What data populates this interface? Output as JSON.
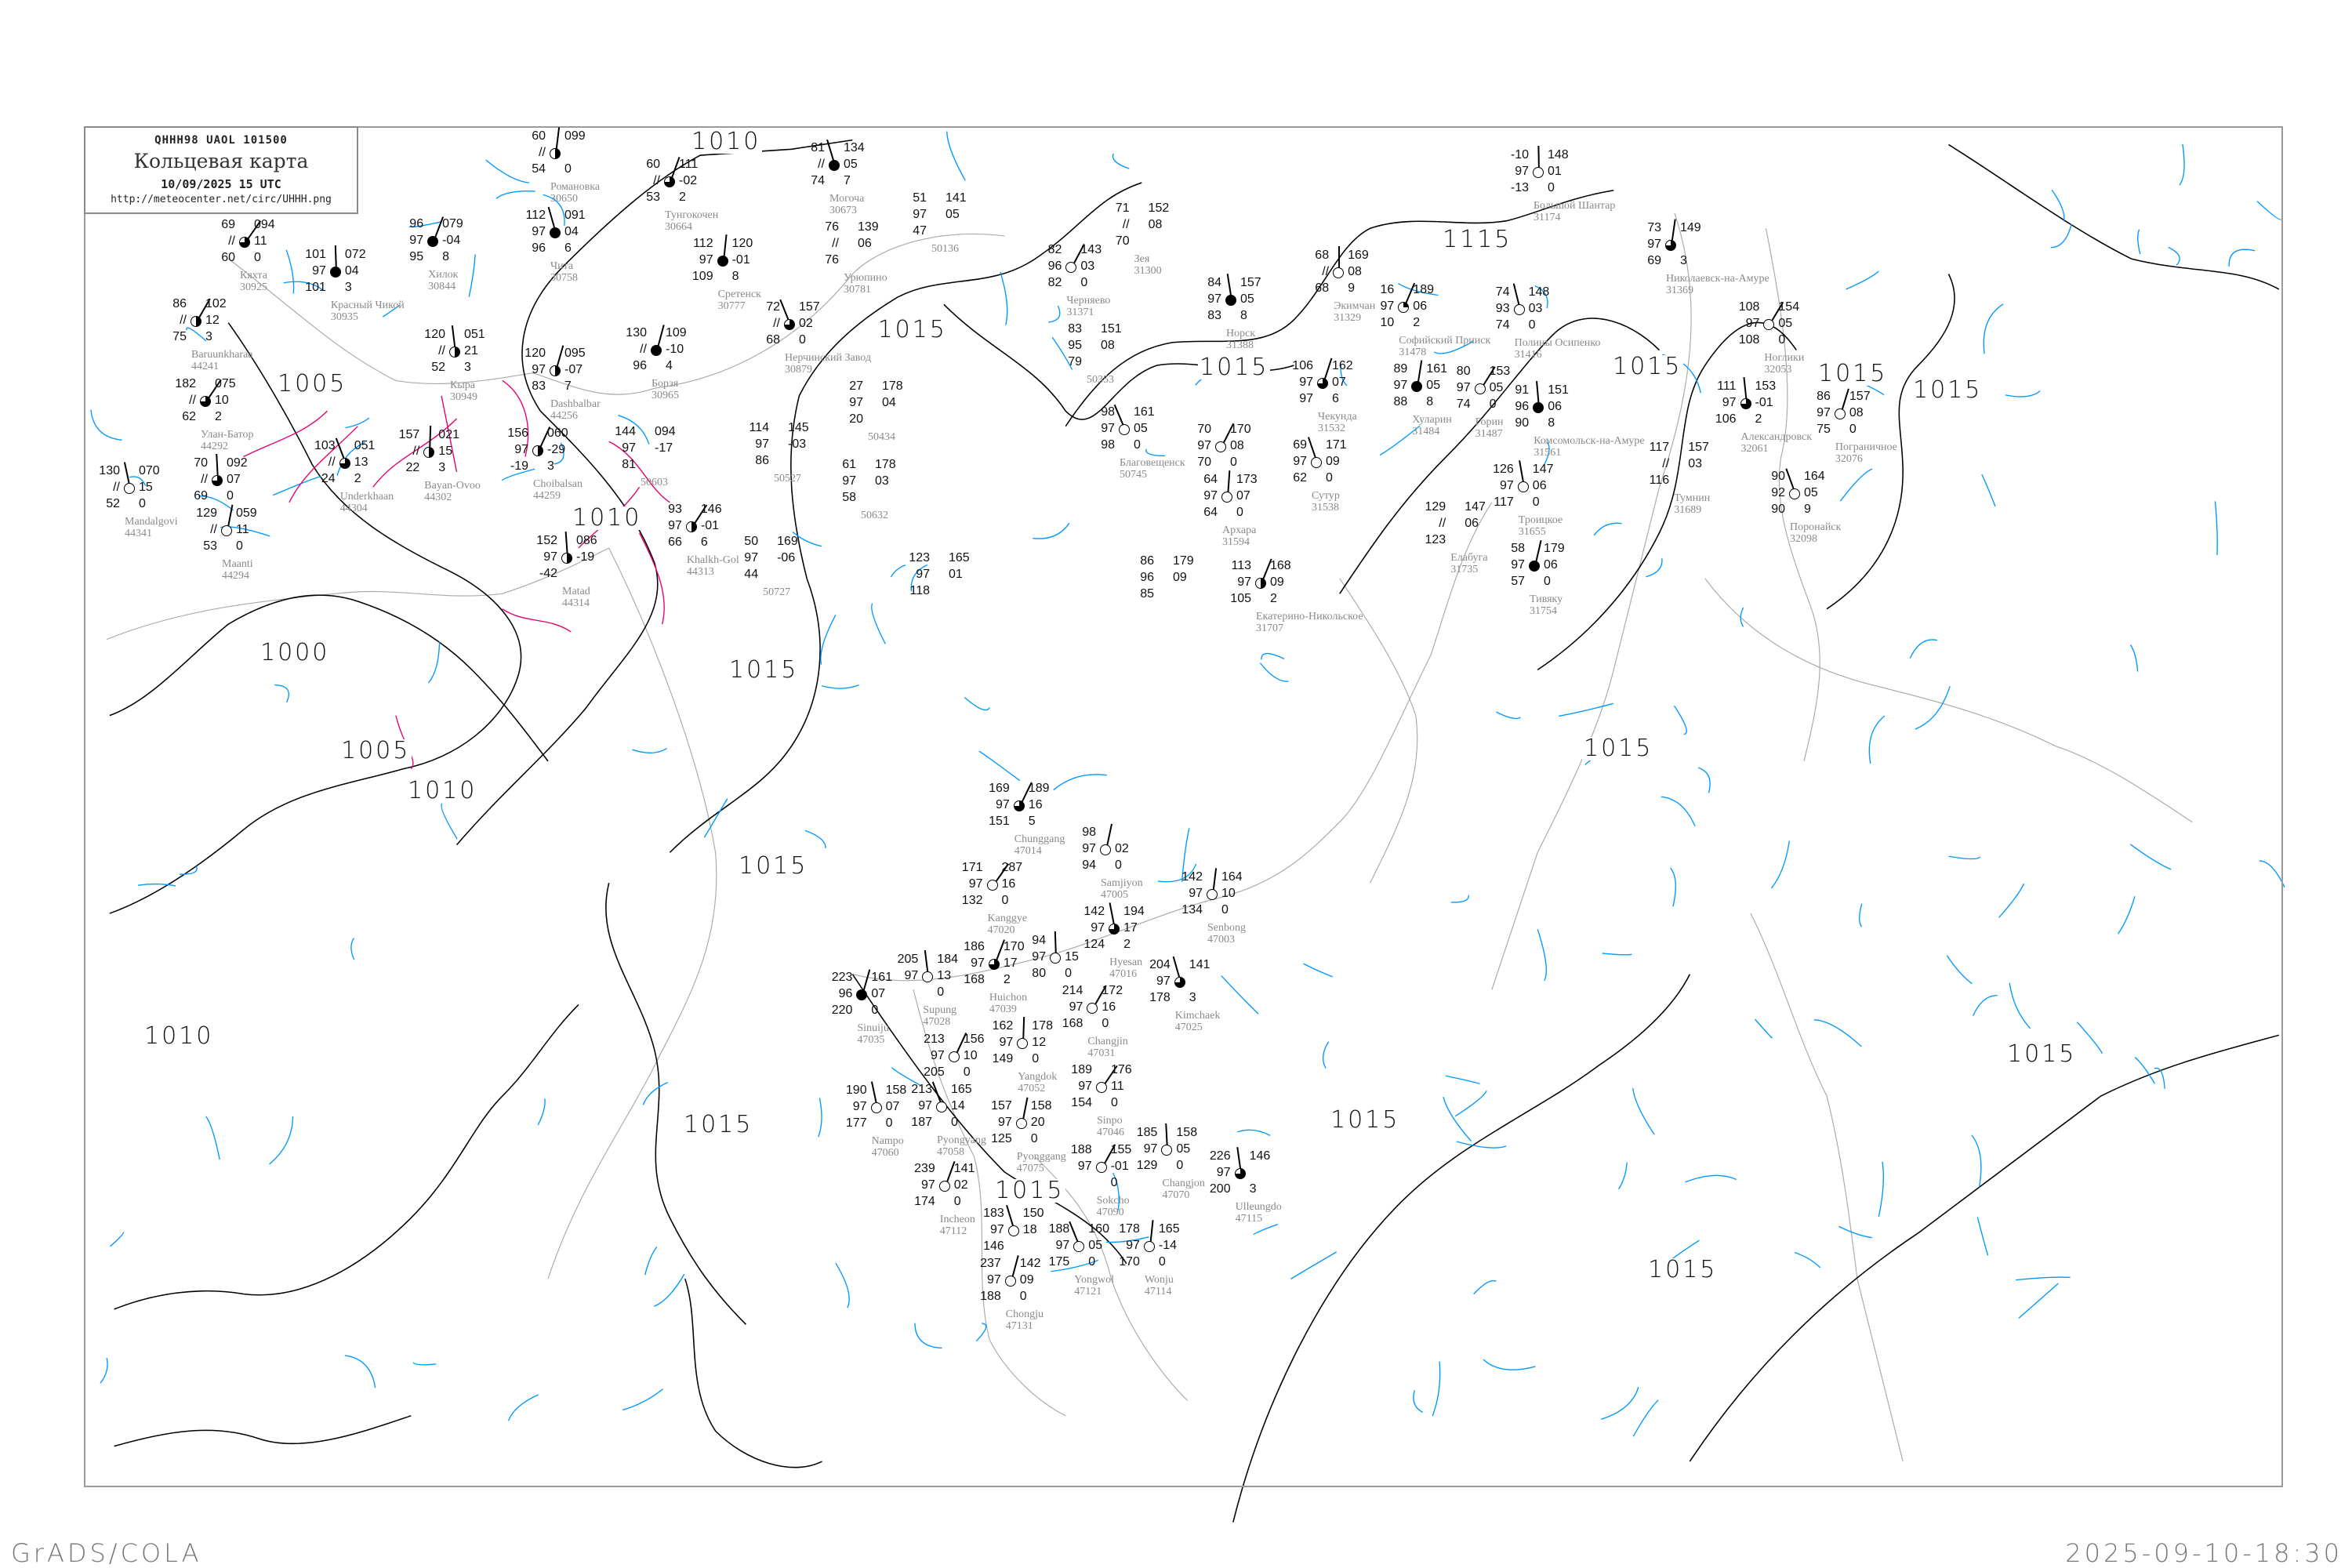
{
  "header": {
    "code": "QHHH98  UAOL  101500",
    "title": "Кольцевая карта",
    "datetime": "10/09/2025 15 UTC",
    "url": "http://meteocenter.net/circ/UHHH.png"
  },
  "footer": {
    "left": "GrADS/COLA",
    "right": "2025-09-10-18:30"
  },
  "colors": {
    "isobar": "#000000",
    "isotherm": "#0099ff",
    "isotherm_negative": "#e0006e",
    "coastline": "#aaaaaa",
    "station_name": "#8a8a8a"
  },
  "isobar_labels": [
    "1010",
    "1005",
    "1010",
    "1000",
    "1015",
    "1005",
    "1010",
    "1015",
    "1010",
    "1015",
    "1015",
    "1015",
    "1015",
    "1015",
    "1115",
    "1015",
    "1015",
    "1015",
    "1015",
    "1015",
    "1015"
  ],
  "stations": [
    {
      "name": "Кяхта",
      "id": "30925",
      "t": "69",
      "vv": "//",
      "td": "60",
      "p": "094",
      "dp": "11",
      "ex": "0",
      "cover": 0.75
    },
    {
      "name": "Красный Чикой",
      "id": "30935",
      "t": "101",
      "vv": "97",
      "td": "101",
      "p": "072",
      "dp": "04",
      "ex": "3",
      "cover": 1
    },
    {
      "name": "Хилок",
      "id": "30844",
      "t": "96",
      "vv": "97",
      "td": "95",
      "p": "079",
      "dp": "-04",
      "ex": "8",
      "cover": 1
    },
    {
      "name": "Чита",
      "id": "30758",
      "t": "112",
      "vv": "97",
      "td": "96",
      "p": "091",
      "dp": "04",
      "ex": "6",
      "cover": 1
    },
    {
      "name": "Романовка",
      "id": "30650",
      "t": "60",
      "vv": "//",
      "td": "54",
      "p": "099",
      "dp": "",
      "ex": "0",
      "cover": 0.5
    },
    {
      "name": "Baruunkharaa",
      "id": "44241",
      "t": "86",
      "vv": "//",
      "td": "75",
      "p": "102",
      "dp": "12",
      "ex": "3",
      "cover": 0.5
    },
    {
      "name": "Кыра",
      "id": "30949",
      "t": "120",
      "vv": "//",
      "td": "52",
      "p": "051",
      "dp": "21",
      "ex": "3",
      "cover": 0.5
    },
    {
      "name": "Dashbalbar",
      "id": "44256",
      "t": "120",
      "vv": "97",
      "td": "83",
      "p": "095",
      "dp": "-07",
      "ex": "7",
      "cover": 0.5
    },
    {
      "name": "Underkhaan",
      "id": "44304",
      "t": "103",
      "vv": "//",
      "td": "24",
      "p": "051",
      "dp": "13",
      "ex": "2",
      "cover": 0.75
    },
    {
      "name": "Bayan-Ovoo",
      "id": "44302",
      "t": "157",
      "vv": "//",
      "td": "22",
      "p": "021",
      "dp": "15",
      "ex": "3",
      "cover": 0.5
    },
    {
      "name": "Choibalsan",
      "id": "44259",
      "t": "156",
      "vv": "97",
      "td": "-19",
      "p": "060",
      "dp": "-29",
      "ex": "3",
      "cover": 0.5
    },
    {
      "name": "Mandalgovi",
      "id": "44341",
      "t": "130",
      "vv": "//",
      "td": "52",
      "p": "070",
      "dp": "15",
      "ex": "0",
      "cover": 0
    },
    {
      "name": "Maanti",
      "id": "44294",
      "t": "129",
      "vv": "//",
      "td": "53",
      "p": "059",
      "dp": "11",
      "ex": "0",
      "cover": 0
    },
    {
      "name": "Улан-Батор",
      "id": "44292",
      "t": "182",
      "vv": "//",
      "td": "62",
      "p": "075",
      "dp": "10",
      "ex": "2",
      "cover": 0.75
    },
    {
      "name": "",
      "id": "",
      "t": "70",
      "vv": "//",
      "td": "69",
      "p": "092",
      "dp": "07",
      "ex": "0",
      "cover": 0.75
    },
    {
      "name": "Тунгокочен",
      "id": "30664",
      "t": "60",
      "vv": "//",
      "td": "53",
      "p": "111",
      "dp": "-02",
      "ex": "2",
      "cover": 0.75
    },
    {
      "name": "Могоча",
      "id": "30673",
      "t": "81",
      "vv": "//",
      "td": "74",
      "p": "134",
      "dp": "05",
      "ex": "7",
      "cover": 1
    },
    {
      "name": "Сретенск",
      "id": "30777",
      "t": "112",
      "vv": "97",
      "td": "109",
      "p": "120",
      "dp": "-01",
      "ex": "8",
      "cover": 1
    },
    {
      "name": "Урюпино",
      "id": "30781",
      "t": "76",
      "vv": "//",
      "td": "76",
      "p": "139",
      "dp": "06",
      "ex": "",
      "cover": null
    },
    {
      "name": "",
      "id": "50136",
      "t": "51",
      "vv": "97",
      "td": "47",
      "p": "141",
      "dp": "05",
      "ex": "",
      "cover": null
    },
    {
      "name": "Борзя",
      "id": "30965",
      "t": "130",
      "vv": "//",
      "td": "96",
      "p": "109",
      "dp": "-10",
      "ex": "4",
      "cover": 1
    },
    {
      "name": "Нерчинский Завод",
      "id": "30879",
      "t": "72",
      "vv": "//",
      "td": "68",
      "p": "157",
      "dp": "02",
      "ex": "0",
      "cover": 0.75
    },
    {
      "name": "",
      "id": "50434",
      "t": "27",
      "vv": "97",
      "td": "20",
      "p": "178",
      "dp": "04",
      "ex": "",
      "cover": null
    },
    {
      "name": "",
      "id": "50603",
      "t": "144",
      "vv": "97",
      "td": "81",
      "p": "094",
      "dp": "-17",
      "ex": "",
      "cover": null
    },
    {
      "name": "",
      "id": "50527",
      "t": "114",
      "vv": "97",
      "td": "86",
      "p": "145",
      "dp": "-03",
      "ex": "",
      "cover": null
    },
    {
      "name": "",
      "id": "50632",
      "t": "61",
      "vv": "97",
      "td": "58",
      "p": "178",
      "dp": "03",
      "ex": "",
      "cover": null
    },
    {
      "name": "Khalkh-Gol",
      "id": "44313",
      "t": "93",
      "vv": "97",
      "td": "66",
      "p": "146",
      "dp": "-01",
      "ex": "6",
      "cover": 0.5
    },
    {
      "name": "Matad",
      "id": "44314",
      "t": "152",
      "vv": "97",
      "td": "-42",
      "p": "086",
      "dp": "-19",
      "ex": "",
      "cover": 0.5
    },
    {
      "name": "",
      "id": "50727",
      "t": "50",
      "vv": "97",
      "td": "44",
      "p": "169",
      "dp": "-06",
      "ex": "",
      "cover": null
    },
    {
      "name": "",
      "id": "",
      "t": "123",
      "vv": "97",
      "td": "118",
      "p": "165",
      "dp": "01",
      "ex": "",
      "cover": null
    },
    {
      "name": "Зея",
      "id": "31300",
      "t": "71",
      "vv": "//",
      "td": "70",
      "p": "152",
      "dp": "08",
      "ex": "",
      "cover": null
    },
    {
      "name": "Черняево",
      "id": "31371",
      "t": "82",
      "vv": "96",
      "td": "82",
      "p": "143",
      "dp": "03",
      "ex": "0",
      "cover": 0
    },
    {
      "name": "Норск",
      "id": "31388",
      "t": "84",
      "vv": "97",
      "td": "83",
      "p": "157",
      "dp": "05",
      "ex": "8",
      "cover": 1
    },
    {
      "name": "",
      "id": "50353",
      "t": "83",
      "vv": "95",
      "td": "79",
      "p": "151",
      "dp": "08",
      "ex": "",
      "cover": null
    },
    {
      "name": "Благовещенск",
      "id": "50745",
      "t": "98",
      "vv": "97",
      "td": "98",
      "p": "161",
      "dp": "05",
      "ex": "0",
      "cover": 0
    },
    {
      "name": "Экимчан",
      "id": "31329",
      "t": "68",
      "vv": "//",
      "td": "68",
      "p": "169",
      "dp": "08",
      "ex": "9",
      "cover": 0
    },
    {
      "name": "Софийский Прииск",
      "id": "31478",
      "t": "16",
      "vv": "97",
      "td": "10",
      "p": "189",
      "dp": "06",
      "ex": "2",
      "cover": 0.25
    },
    {
      "name": "Полины Осипенко",
      "id": "31416",
      "t": "74",
      "vv": "93",
      "td": "74",
      "p": "148",
      "dp": "03",
      "ex": "0",
      "cover": 0
    },
    {
      "name": "Хуларин",
      "id": "31484",
      "t": "89",
      "vv": "97",
      "td": "88",
      "p": "161",
      "dp": "05",
      "ex": "8",
      "cover": 1
    },
    {
      "name": "Горин",
      "id": "31487",
      "t": "80",
      "vv": "97",
      "td": "74",
      "p": "153",
      "dp": "05",
      "ex": "0",
      "cover": 0
    },
    {
      "name": "Комсомольск-на-Амуре",
      "id": "31561",
      "t": "91",
      "vv": "96",
      "td": "90",
      "p": "151",
      "dp": "06",
      "ex": "8",
      "cover": 1
    },
    {
      "name": "Чекунда",
      "id": "31532",
      "t": "106",
      "vv": "97",
      "td": "97",
      "p": "162",
      "dp": "07",
      "ex": "6",
      "cover": 0.75
    },
    {
      "name": "Сутур",
      "id": "31538",
      "t": "69",
      "vv": "97",
      "td": "62",
      "p": "171",
      "dp": "09",
      "ex": "0",
      "cover": 0
    },
    {
      "name": "Архара",
      "id": "31594",
      "t": "64",
      "vv": "97",
      "td": "64",
      "p": "173",
      "dp": "07",
      "ex": "0",
      "cover": 0
    },
    {
      "name": "",
      "id": "",
      "t": "70",
      "vv": "97",
      "td": "70",
      "p": "170",
      "dp": "08",
      "ex": "0",
      "cover": 0
    },
    {
      "name": "Троицкое",
      "id": "31655",
      "t": "126",
      "vv": "97",
      "td": "117",
      "p": "147",
      "dp": "06",
      "ex": "0",
      "cover": 0
    },
    {
      "name": "Тивяку",
      "id": "31754",
      "t": "58",
      "vv": "97",
      "td": "57",
      "p": "179",
      "dp": "06",
      "ex": "0",
      "cover": 1
    },
    {
      "name": "Елабуга",
      "id": "31735",
      "t": "129",
      "vv": "//",
      "td": "123",
      "p": "147",
      "dp": "06",
      "ex": "",
      "cover": null
    },
    {
      "name": "Большой Шантар",
      "id": "31174",
      "t": "-10",
      "vv": "97",
      "td": "-13",
      "p": "148",
      "dp": "01",
      "ex": "0",
      "cover": 0
    },
    {
      "name": "Екатерино-Никольское",
      "id": "31707",
      "t": "113",
      "vv": "97",
      "td": "105",
      "p": "168",
      "dp": "09",
      "ex": "2",
      "cover": 0.5
    },
    {
      "name": "",
      "id": "",
      "t": "86",
      "vv": "96",
      "td": "85",
      "p": "179",
      "dp": "09",
      "ex": "",
      "cover": null
    },
    {
      "name": "Николаевск-на-Амуре",
      "id": "31369",
      "t": "73",
      "vv": "97",
      "td": "69",
      "p": "149",
      "dp": "",
      "ex": "3",
      "cover": 0.75
    },
    {
      "name": "Ноглики",
      "id": "32053",
      "t": "108",
      "vv": "97",
      "td": "108",
      "p": "154",
      "dp": "05",
      "ex": "0",
      "cover": 0
    },
    {
      "name": "Александровск",
      "id": "32061",
      "t": "111",
      "vv": "97",
      "td": "106",
      "p": "153",
      "dp": "-01",
      "ex": "2",
      "cover": 0.75
    },
    {
      "name": "Пограничное",
      "id": "32076",
      "t": "86",
      "vv": "97",
      "td": "75",
      "p": "157",
      "dp": "08",
      "ex": "0",
      "cover": 0
    },
    {
      "name": "Поронайск",
      "id": "32098",
      "t": "90",
      "vv": "92",
      "td": "90",
      "p": "164",
      "dp": "05",
      "ex": "9",
      "cover": 0
    },
    {
      "name": "Тумнин",
      "id": "31689",
      "t": "117",
      "vv": "//",
      "td": "116",
      "p": "157",
      "dp": "03",
      "ex": "",
      "cover": null
    },
    {
      "name": "Chunggang",
      "id": "47014",
      "t": "169",
      "vv": "97",
      "td": "151",
      "p": "189",
      "dp": "16",
      "ex": "5",
      "cover": 0.75
    },
    {
      "name": "Hyesan",
      "id": "47016",
      "t": "142",
      "vv": "97",
      "td": "124",
      "p": "194",
      "dp": "17",
      "ex": "2",
      "cover": 0.75
    },
    {
      "name": "Samjiyon",
      "id": "47005",
      "t": "98",
      "vv": "97",
      "td": "94",
      "p": "",
      "dp": "02",
      "ex": "0",
      "cover": 0
    },
    {
      "name": "Kanggye",
      "id": "47020",
      "t": "171",
      "vv": "97",
      "td": "132",
      "p": "287",
      "dp": "16",
      "ex": "0",
      "cover": 0
    },
    {
      "name": "",
      "id": "",
      "t": "94",
      "vv": "97",
      "td": "80",
      "p": "",
      "dp": "15",
      "ex": "0",
      "cover": 0
    },
    {
      "name": "Huichon",
      "id": "47039",
      "t": "186",
      "vv": "97",
      "td": "168",
      "p": "170",
      "dp": "17",
      "ex": "2",
      "cover": 0.75
    },
    {
      "name": "Kimchaek",
      "id": "47025",
      "t": "204",
      "vv": "97",
      "td": "178",
      "p": "141",
      "dp": "",
      "ex": "3",
      "cover": 0.75
    },
    {
      "name": "Senbong",
      "id": "47003",
      "t": "142",
      "vv": "97",
      "td": "134",
      "p": "164",
      "dp": "10",
      "ex": "0",
      "cover": 0
    },
    {
      "name": "Changjin",
      "id": "47031",
      "t": "214",
      "vv": "97",
      "td": "168",
      "p": "172",
      "dp": "16",
      "ex": "0",
      "cover": 0
    },
    {
      "name": "Supung",
      "id": "47028",
      "t": "205",
      "vv": "97",
      "td": "",
      "p": "184",
      "dp": "13",
      "ex": "0",
      "cover": 0
    },
    {
      "name": "Sinuiju",
      "id": "47035",
      "t": "223",
      "vv": "96",
      "td": "220",
      "p": "161",
      "dp": "07",
      "ex": "0",
      "cover": 1
    },
    {
      "name": "Pyongyang",
      "id": "47058",
      "t": "213",
      "vv": "97",
      "td": "187",
      "p": "165",
      "dp": "14",
      "ex": "0",
      "cover": 0
    },
    {
      "name": "Yangdok",
      "id": "47052",
      "t": "162",
      "vv": "97",
      "td": "149",
      "p": "178",
      "dp": "12",
      "ex": "0",
      "cover": 0
    },
    {
      "name": "",
      "id": "",
      "t": "213",
      "vv": "97",
      "td": "205",
      "p": "156",
      "dp": "10",
      "ex": "0",
      "cover": 0
    },
    {
      "name": "Nampo",
      "id": "47060",
      "t": "190",
      "vv": "97",
      "td": "177",
      "p": "158",
      "dp": "07",
      "ex": "0",
      "cover": 0
    },
    {
      "name": "Pyonggang",
      "id": "47075",
      "t": "157",
      "vv": "97",
      "td": "125",
      "p": "158",
      "dp": "20",
      "ex": "0",
      "cover": 0
    },
    {
      "name": "Sinpo",
      "id": "47046",
      "t": "189",
      "vv": "97",
      "td": "154",
      "p": "176",
      "dp": "11",
      "ex": "0",
      "cover": 0
    },
    {
      "name": "Changjon",
      "id": "47070",
      "t": "185",
      "vv": "97",
      "td": "129",
      "p": "158",
      "dp": "05",
      "ex": "0",
      "cover": 0
    },
    {
      "name": "Incheon",
      "id": "47112",
      "t": "239",
      "vv": "97",
      "td": "174",
      "p": "141",
      "dp": "02",
      "ex": "0",
      "cover": 0
    },
    {
      "name": "",
      "id": "",
      "t": "183",
      "vv": "97",
      "td": "146",
      "p": "150",
      "dp": "18",
      "ex": "",
      "cover": 0
    },
    {
      "name": "Wonju",
      "id": "47114",
      "t": "178",
      "vv": "97",
      "td": "170",
      "p": "165",
      "dp": "-14",
      "ex": "0",
      "cover": 0
    },
    {
      "name": "Sokcho",
      "id": "47090",
      "t": "188",
      "vv": "97",
      "td": "",
      "p": "155",
      "dp": "-01",
      "ex": "0",
      "cover": 0
    },
    {
      "name": "Ulleungdo",
      "id": "47115",
      "t": "226",
      "vv": "97",
      "td": "200",
      "p": "146",
      "dp": "",
      "ex": "3",
      "cover": 0.75
    },
    {
      "name": "Chongju",
      "id": "47131",
      "t": "237",
      "vv": "97",
      "td": "188",
      "p": "142",
      "dp": "09",
      "ex": "0",
      "cover": 0
    },
    {
      "name": "Yongwol",
      "id": "47121",
      "t": "188",
      "vv": "97",
      "td": "175",
      "p": "160",
      "dp": "05",
      "ex": "0",
      "cover": 0
    }
  ]
}
